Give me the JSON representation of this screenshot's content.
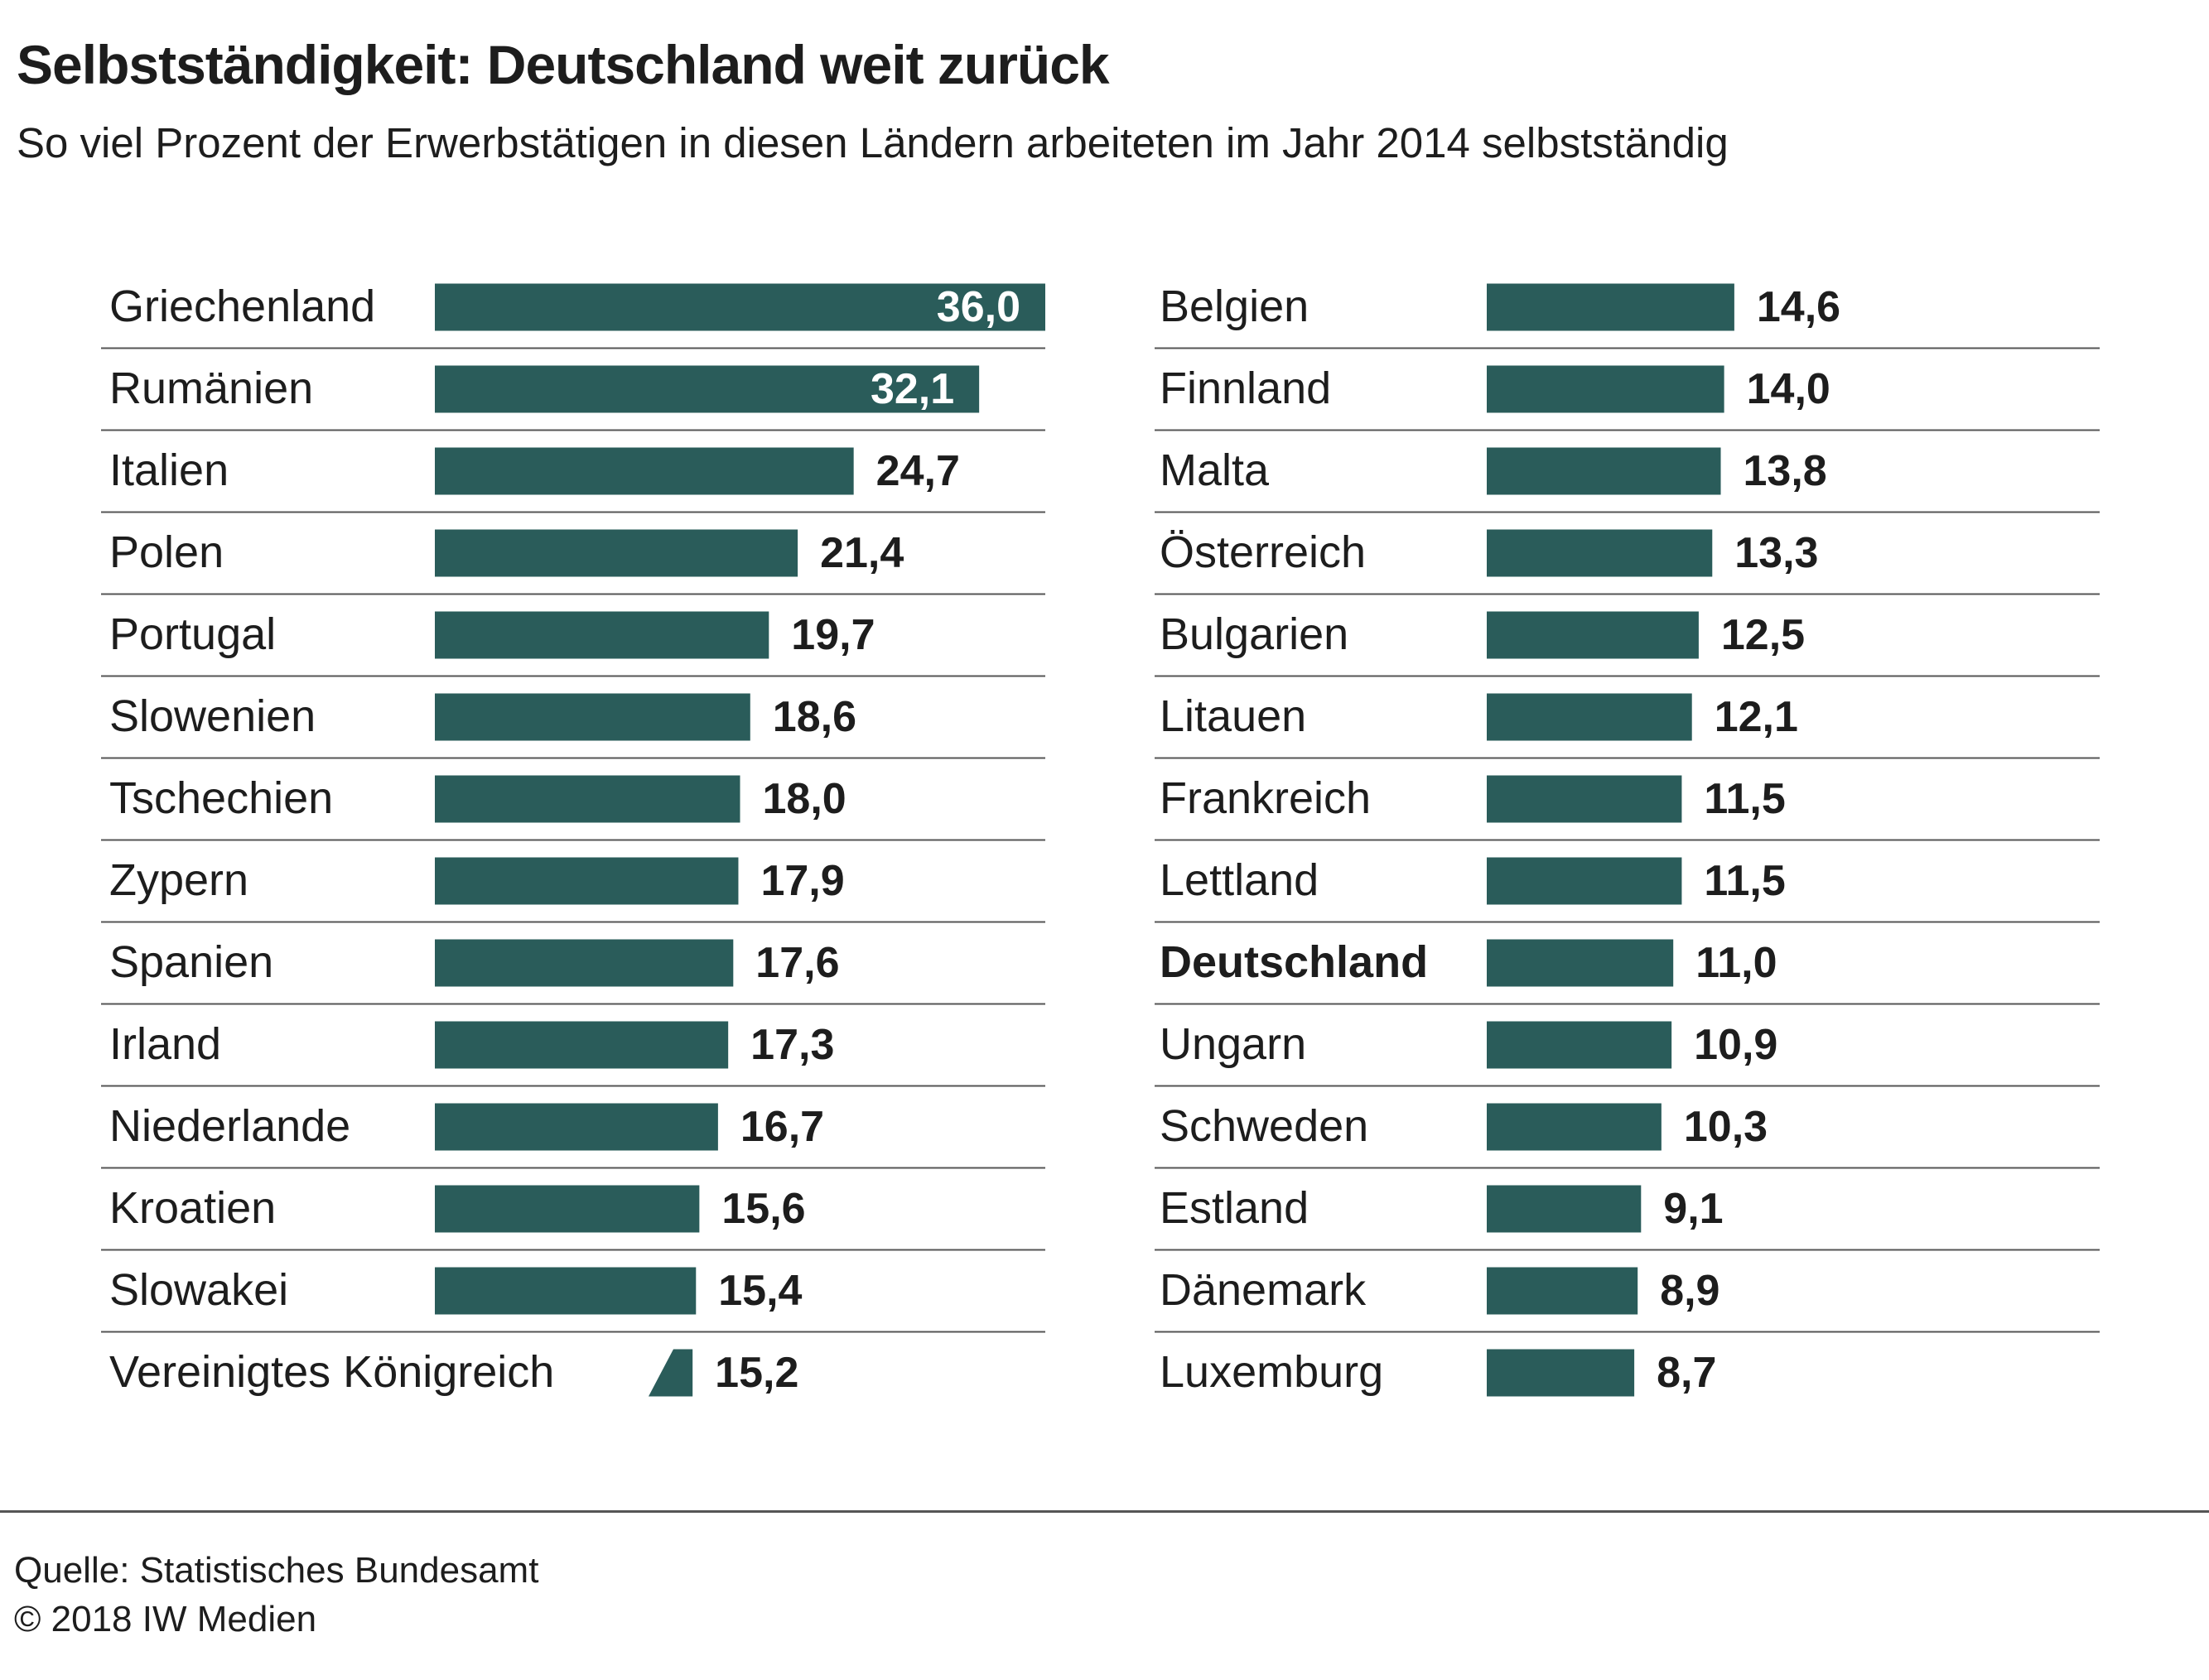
{
  "title": "Selbstständigkeit: Deutschland weit zurück",
  "subtitle": "So viel Prozent der Erwerbstätigen in diesen Ländern arbeiteten im Jahr 2014 selbstständig",
  "source": "Quelle: Statistisches Bundesamt",
  "copyright": "© 2018 IW Medien",
  "colors": {
    "bar": "#2a5c5a",
    "rule": "#555555",
    "text": "#1d1d1d",
    "label_inside": "#ffffff"
  },
  "chart_data": {
    "type": "bar",
    "orientation": "horizontal",
    "unit": "Prozent",
    "highlight": "Deutschland",
    "columns": [
      {
        "categories": [
          "Griechenland",
          "Rumänien",
          "Italien",
          "Polen",
          "Portugal",
          "Slowenien",
          "Tschechien",
          "Zypern",
          "Spanien",
          "Irland",
          "Niederlande",
          "Kroatien",
          "Slowakei",
          "Vereinigtes Königreich"
        ],
        "values": [
          36.0,
          32.1,
          24.7,
          21.4,
          19.7,
          18.6,
          18.0,
          17.9,
          17.6,
          17.3,
          16.7,
          15.6,
          15.4,
          15.2
        ],
        "labels": [
          "36,0",
          "32,1",
          "24,7",
          "21,4",
          "19,7",
          "18,6",
          "18,0",
          "17,9",
          "17,6",
          "17,3",
          "16,7",
          "15,6",
          "15,4",
          "15,2"
        ]
      },
      {
        "categories": [
          "Belgien",
          "Finnland",
          "Malta",
          "Österreich",
          "Bulgarien",
          "Litauen",
          "Frankreich",
          "Lettland",
          "Deutschland",
          "Ungarn",
          "Schweden",
          "Estland",
          "Dänemark",
          "Luxemburg"
        ],
        "values": [
          14.6,
          14.0,
          13.8,
          13.3,
          12.5,
          12.1,
          11.5,
          11.5,
          11.0,
          10.9,
          10.3,
          9.1,
          8.9,
          8.7
        ],
        "labels": [
          "14,6",
          "14,0",
          "13,8",
          "13,3",
          "12,5",
          "12,1",
          "11,5",
          "11,5",
          "11,0",
          "10,9",
          "10,3",
          "9,1",
          "8,9",
          "8,7"
        ]
      }
    ]
  }
}
